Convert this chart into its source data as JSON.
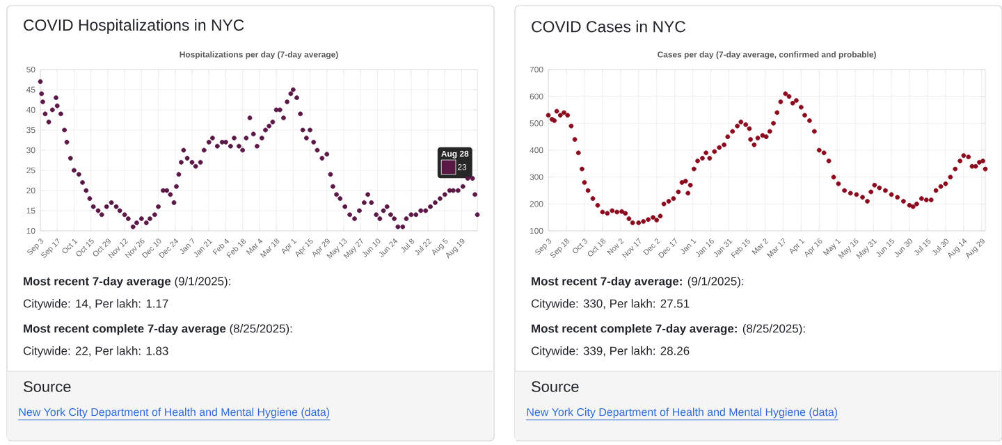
{
  "chart_data": [
    {
      "type": "scatter",
      "title": "COVID Hospitalizations in NYC",
      "subtitle": "Hospitalizations per day (7-day average)",
      "marker": "circle",
      "grid": true,
      "xlim": [
        "2024-09-03",
        "2025-09-01"
      ],
      "ylim": [
        10,
        50
      ],
      "yticks": [
        10,
        15,
        20,
        25,
        30,
        35,
        40,
        45,
        50
      ],
      "xticks": [
        {
          "value": "2024-09-03",
          "label": "Sep 3"
        },
        {
          "value": "2024-09-17",
          "label": "Sep 17"
        },
        {
          "value": "2024-10-01",
          "label": "Oct 1"
        },
        {
          "value": "2024-10-15",
          "label": "Oct 15"
        },
        {
          "value": "2024-10-29",
          "label": "Oct 29"
        },
        {
          "value": "2024-11-12",
          "label": "Nov 12"
        },
        {
          "value": "2024-11-26",
          "label": "Nov 26"
        },
        {
          "value": "2024-12-10",
          "label": "Dec 10"
        },
        {
          "value": "2024-12-24",
          "label": "Dec 24"
        },
        {
          "value": "2025-01-07",
          "label": "Jan 7"
        },
        {
          "value": "2025-01-21",
          "label": "Jan 21"
        },
        {
          "value": "2025-02-04",
          "label": "Feb 4"
        },
        {
          "value": "2025-02-18",
          "label": "Feb 18"
        },
        {
          "value": "2025-03-04",
          "label": "Mar 4"
        },
        {
          "value": "2025-03-18",
          "label": "Mar 18"
        },
        {
          "value": "2025-04-01",
          "label": "Apr 1"
        },
        {
          "value": "2025-04-15",
          "label": "Apr 15"
        },
        {
          "value": "2025-04-29",
          "label": "Apr 29"
        },
        {
          "value": "2025-05-13",
          "label": "May 13"
        },
        {
          "value": "2025-05-27",
          "label": "May 27"
        },
        {
          "value": "2025-06-10",
          "label": "Jun 10"
        },
        {
          "value": "2025-06-24",
          "label": "Jun 24"
        },
        {
          "value": "2025-07-08",
          "label": "Jul 8"
        },
        {
          "value": "2025-07-22",
          "label": "Jul 22"
        },
        {
          "value": "2025-08-05",
          "label": "Aug 5"
        },
        {
          "value": "2025-08-19",
          "label": "Aug 19"
        }
      ],
      "series": [
        {
          "color": "#5a1846",
          "x": [
            "2024-09-03",
            "2024-09-04",
            "2024-09-05",
            "2024-09-07",
            "2024-09-10",
            "2024-09-13",
            "2024-09-16",
            "2024-09-17",
            "2024-09-20",
            "2024-09-23",
            "2024-09-25",
            "2024-09-28",
            "2024-10-01",
            "2024-10-05",
            "2024-10-08",
            "2024-10-11",
            "2024-10-14",
            "2024-10-17",
            "2024-10-21",
            "2024-10-24",
            "2024-10-28",
            "2024-11-01",
            "2024-11-05",
            "2024-11-08",
            "2024-11-12",
            "2024-11-15",
            "2024-11-19",
            "2024-11-22",
            "2024-11-26",
            "2024-11-30",
            "2024-12-03",
            "2024-12-07",
            "2024-12-10",
            "2024-12-14",
            "2024-12-17",
            "2024-12-20",
            "2024-12-23",
            "2024-12-25",
            "2024-12-27",
            "2024-12-29",
            "2024-12-31",
            "2025-01-03",
            "2025-01-07",
            "2025-01-10",
            "2025-01-14",
            "2025-01-17",
            "2025-01-21",
            "2025-01-24",
            "2025-01-28",
            "2025-02-01",
            "2025-02-04",
            "2025-02-08",
            "2025-02-11",
            "2025-02-15",
            "2025-02-18",
            "2025-02-21",
            "2025-02-24",
            "2025-02-27",
            "2025-03-02",
            "2025-03-06",
            "2025-03-09",
            "2025-03-12",
            "2025-03-15",
            "2025-03-18",
            "2025-03-21",
            "2025-03-24",
            "2025-03-27",
            "2025-03-30",
            "2025-04-01",
            "2025-04-04",
            "2025-04-07",
            "2025-04-09",
            "2025-04-12",
            "2025-04-15",
            "2025-04-18",
            "2025-04-21",
            "2025-04-25",
            "2025-04-29",
            "2025-05-02",
            "2025-05-04",
            "2025-05-07",
            "2025-05-10",
            "2025-05-14",
            "2025-05-18",
            "2025-05-22",
            "2025-05-26",
            "2025-05-30",
            "2025-06-02",
            "2025-06-05",
            "2025-06-09",
            "2025-06-12",
            "2025-06-15",
            "2025-06-18",
            "2025-06-21",
            "2025-06-24",
            "2025-06-27",
            "2025-07-01",
            "2025-07-04",
            "2025-07-08",
            "2025-07-12",
            "2025-07-16",
            "2025-07-20",
            "2025-07-24",
            "2025-07-28",
            "2025-08-01",
            "2025-08-05",
            "2025-08-09",
            "2025-08-12",
            "2025-08-16",
            "2025-08-20",
            "2025-08-24",
            "2025-08-28",
            "2025-08-30",
            "2025-09-01"
          ],
          "values": [
            47,
            44,
            42,
            39,
            37,
            40,
            43,
            41,
            39,
            35,
            32,
            28,
            25,
            24,
            22,
            20,
            18,
            16,
            15,
            14,
            16,
            17,
            16,
            15,
            14,
            13,
            11,
            12,
            13,
            12,
            13,
            14,
            16,
            20,
            20,
            19,
            17,
            21,
            24,
            27,
            30,
            28,
            27,
            26,
            27,
            30,
            32,
            33,
            31,
            32,
            32,
            31,
            33,
            31,
            30,
            33,
            38,
            34,
            31,
            33,
            35,
            36,
            37,
            40,
            40,
            38,
            42,
            44,
            45,
            43,
            39,
            35,
            33,
            35,
            32,
            30,
            28,
            29,
            24,
            21,
            19,
            18,
            16,
            14,
            13,
            15,
            17,
            19,
            17,
            14,
            13,
            15,
            16,
            14,
            13,
            11,
            11,
            13,
            14,
            14,
            15,
            15,
            16,
            17,
            18,
            19,
            20,
            20,
            20,
            21,
            23,
            23,
            19,
            14
          ]
        }
      ],
      "annotations": [
        {
          "text": "Aug 28",
          "x": "2025-08-28",
          "y": 23
        },
        {
          "text": "23",
          "x": "2025-08-28",
          "y": 23
        },
        "**Most recent 7-day average** (9/1/2025):",
        "Citywide: 14, Per lakh: 1.17",
        "**Most recent complete 7-day average** (8/25/2025):",
        "Citywide: 22, Per lakh: 1.83",
        "Source",
        "New York City Department of Health and Mental Hygiene (data)"
      ]
    },
    {
      "type": "scatter",
      "title": "COVID Cases in NYC",
      "subtitle": "Cases per day (7-day average, confirmed and probable)",
      "marker": "circle",
      "grid": true,
      "xlim": [
        "2024-09-03",
        "2025-09-01"
      ],
      "ylim": [
        100,
        700
      ],
      "yticks": [
        100,
        200,
        300,
        400,
        500,
        600,
        700
      ],
      "xticks": [
        {
          "value": "2024-09-03",
          "label": "Sep 3"
        },
        {
          "value": "2024-09-18",
          "label": "Sep 18"
        },
        {
          "value": "2024-10-03",
          "label": "Oct 3"
        },
        {
          "value": "2024-10-18",
          "label": "Oct 18"
        },
        {
          "value": "2024-11-02",
          "label": "Nov 2"
        },
        {
          "value": "2024-11-17",
          "label": "Nov 17"
        },
        {
          "value": "2024-12-02",
          "label": "Dec 2"
        },
        {
          "value": "2024-12-17",
          "label": "Dec 17"
        },
        {
          "value": "2025-01-01",
          "label": "Jan 1"
        },
        {
          "value": "2025-01-16",
          "label": "Jan 16"
        },
        {
          "value": "2025-01-31",
          "label": "Jan 31"
        },
        {
          "value": "2025-02-15",
          "label": "Feb 15"
        },
        {
          "value": "2025-03-02",
          "label": "Mar 2"
        },
        {
          "value": "2025-03-17",
          "label": "Mar 17"
        },
        {
          "value": "2025-04-01",
          "label": "Apr 1"
        },
        {
          "value": "2025-04-16",
          "label": "Apr 16"
        },
        {
          "value": "2025-05-01",
          "label": "May 1"
        },
        {
          "value": "2025-05-16",
          "label": "May 16"
        },
        {
          "value": "2025-05-31",
          "label": "May 31"
        },
        {
          "value": "2025-06-15",
          "label": "Jun 15"
        },
        {
          "value": "2025-06-30",
          "label": "Jun 30"
        },
        {
          "value": "2025-07-15",
          "label": "Jul 15"
        },
        {
          "value": "2025-07-30",
          "label": "Jul 30"
        },
        {
          "value": "2025-08-14",
          "label": "Aug 14"
        },
        {
          "value": "2025-08-29",
          "label": "Aug 29"
        }
      ],
      "series": [
        {
          "color": "#8b0a1e",
          "x": [
            "2024-09-03",
            "2024-09-06",
            "2024-09-08",
            "2024-09-10",
            "2024-09-13",
            "2024-09-16",
            "2024-09-19",
            "2024-09-22",
            "2024-09-25",
            "2024-09-28",
            "2024-10-01",
            "2024-10-03",
            "2024-10-06",
            "2024-10-10",
            "2024-10-14",
            "2024-10-18",
            "2024-10-22",
            "2024-10-26",
            "2024-10-30",
            "2024-11-03",
            "2024-11-06",
            "2024-11-09",
            "2024-11-12",
            "2024-11-17",
            "2024-11-21",
            "2024-11-25",
            "2024-11-29",
            "2024-12-02",
            "2024-12-05",
            "2024-12-08",
            "2024-12-12",
            "2024-12-16",
            "2024-12-20",
            "2024-12-23",
            "2024-12-26",
            "2024-12-28",
            "2024-12-30",
            "2025-01-02",
            "2025-01-05",
            "2025-01-09",
            "2025-01-12",
            "2025-01-15",
            "2025-01-19",
            "2025-01-23",
            "2025-01-27",
            "2025-01-30",
            "2025-02-03",
            "2025-02-07",
            "2025-02-10",
            "2025-02-14",
            "2025-02-17",
            "2025-02-18",
            "2025-02-21",
            "2025-02-24",
            "2025-02-28",
            "2025-03-03",
            "2025-03-06",
            "2025-03-09",
            "2025-03-12",
            "2025-03-15",
            "2025-03-19",
            "2025-03-22",
            "2025-03-25",
            "2025-03-28",
            "2025-04-01",
            "2025-04-04",
            "2025-04-08",
            "2025-04-12",
            "2025-04-16",
            "2025-04-20",
            "2025-04-24",
            "2025-04-28",
            "2025-05-02",
            "2025-05-07",
            "2025-05-12",
            "2025-05-17",
            "2025-05-22",
            "2025-05-26",
            "2025-05-29",
            "2025-06-01",
            "2025-06-05",
            "2025-06-10",
            "2025-06-15",
            "2025-06-20",
            "2025-06-25",
            "2025-06-30",
            "2025-07-03",
            "2025-07-06",
            "2025-07-10",
            "2025-07-14",
            "2025-07-18",
            "2025-07-22",
            "2025-07-26",
            "2025-07-30",
            "2025-08-03",
            "2025-08-07",
            "2025-08-11",
            "2025-08-14",
            "2025-08-18",
            "2025-08-21",
            "2025-08-24",
            "2025-08-27",
            "2025-08-30",
            "2025-09-01"
          ],
          "values": [
            530,
            515,
            510,
            545,
            530,
            540,
            530,
            490,
            440,
            390,
            330,
            280,
            250,
            220,
            195,
            170,
            165,
            175,
            170,
            172,
            165,
            145,
            130,
            130,
            135,
            142,
            150,
            140,
            155,
            200,
            210,
            220,
            245,
            280,
            285,
            240,
            270,
            330,
            360,
            370,
            390,
            370,
            395,
            410,
            420,
            450,
            470,
            490,
            505,
            495,
            480,
            440,
            420,
            445,
            455,
            450,
            470,
            500,
            540,
            580,
            610,
            600,
            575,
            585,
            560,
            530,
            510,
            470,
            400,
            390,
            360,
            300,
            275,
            250,
            240,
            235,
            225,
            210,
            245,
            270,
            260,
            250,
            235,
            225,
            210,
            195,
            190,
            200,
            220,
            215,
            215,
            250,
            265,
            275,
            300,
            330,
            360,
            380,
            375,
            340,
            340,
            355,
            360,
            330
          ]
        }
      ],
      "annotations": [
        "**Most recent 7-day average:** (9/1/2025):",
        "Citywide: 330, Per lakh: 27.51",
        "**Most recent complete 7-day average:** (8/25/2025):",
        "Citywide: 339, Per lakh: 28.26",
        "Source",
        "New York City Department of Health and Mental Hygiene (data)"
      ]
    }
  ]
}
